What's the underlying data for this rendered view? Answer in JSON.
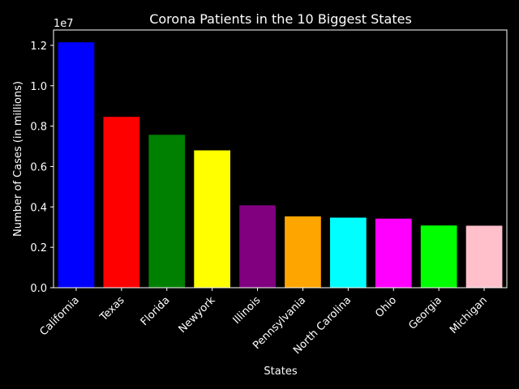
{
  "chart_data": {
    "type": "bar",
    "title": "Corona Patients in the 10 Biggest States",
    "xlabel": "States",
    "ylabel": "Number of Cases (in millions)",
    "offset_text": "1e7",
    "categories": [
      "California",
      "Texas",
      "Florida",
      "Newyork",
      "Illinois",
      "Pennsylvania",
      "North Carolina",
      "Ohio",
      "Georgia",
      "Michigan"
    ],
    "values": [
      12150000,
      8460000,
      7570000,
      6800000,
      4080000,
      3530000,
      3470000,
      3420000,
      3080000,
      3070000
    ],
    "colors": [
      "#0000ff",
      "#ff0000",
      "#008000",
      "#ffff00",
      "#800080",
      "#ffa500",
      "#00ffff",
      "#ff00ff",
      "#00ff00",
      "#ffc0cb"
    ],
    "ylim": [
      0,
      12760000
    ],
    "yticks": [
      0,
      2000000,
      4000000,
      6000000,
      8000000,
      10000000,
      12000000
    ],
    "ytick_labels": [
      "0.0",
      "0.2",
      "0.4",
      "0.6",
      "0.8",
      "1.0",
      "1.2"
    ],
    "grid": false,
    "background": "#000000",
    "foreground": "#ffffff"
  }
}
